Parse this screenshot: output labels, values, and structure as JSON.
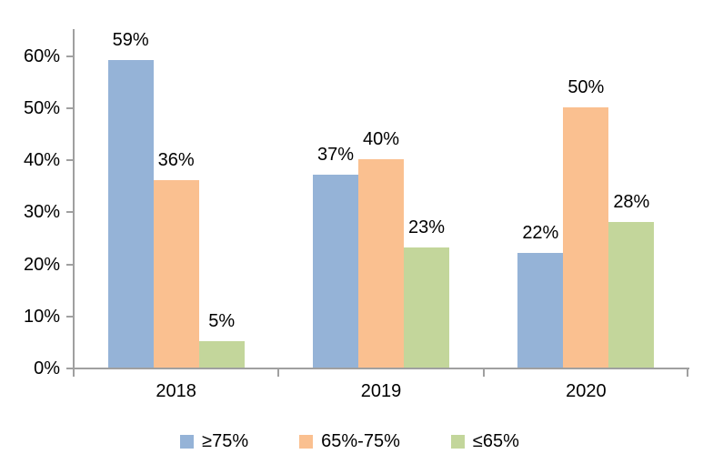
{
  "chart_data": {
    "type": "bar",
    "title": "",
    "xlabel": "",
    "ylabel": "",
    "categories": [
      "2018",
      "2019",
      "2020"
    ],
    "series": [
      {
        "name": "≥75%",
        "color": "#95b3d7",
        "values": [
          59,
          37,
          22
        ]
      },
      {
        "name": "65%-75%",
        "color": "#fac090",
        "values": [
          36,
          40,
          50
        ]
      },
      {
        "name": "≤65%",
        "color": "#c3d69b",
        "values": [
          5,
          23,
          28
        ]
      }
    ],
    "data_labels": [
      [
        "59%",
        "37%",
        "22%"
      ],
      [
        "36%",
        "40%",
        "50%"
      ],
      [
        "5%",
        "23%",
        "28%"
      ]
    ],
    "value_suffix": "%",
    "ylim": [
      0,
      65
    ],
    "yticks": [
      0,
      10,
      20,
      30,
      40,
      50,
      60
    ],
    "ytick_labels": [
      "0%",
      "10%",
      "20%",
      "30%",
      "40%",
      "50%",
      "60%"
    ],
    "grid": false,
    "legend_position": "bottom",
    "axis_color": "#a0a0a0",
    "text_color": "#000000",
    "background_color": "#ffffff"
  }
}
